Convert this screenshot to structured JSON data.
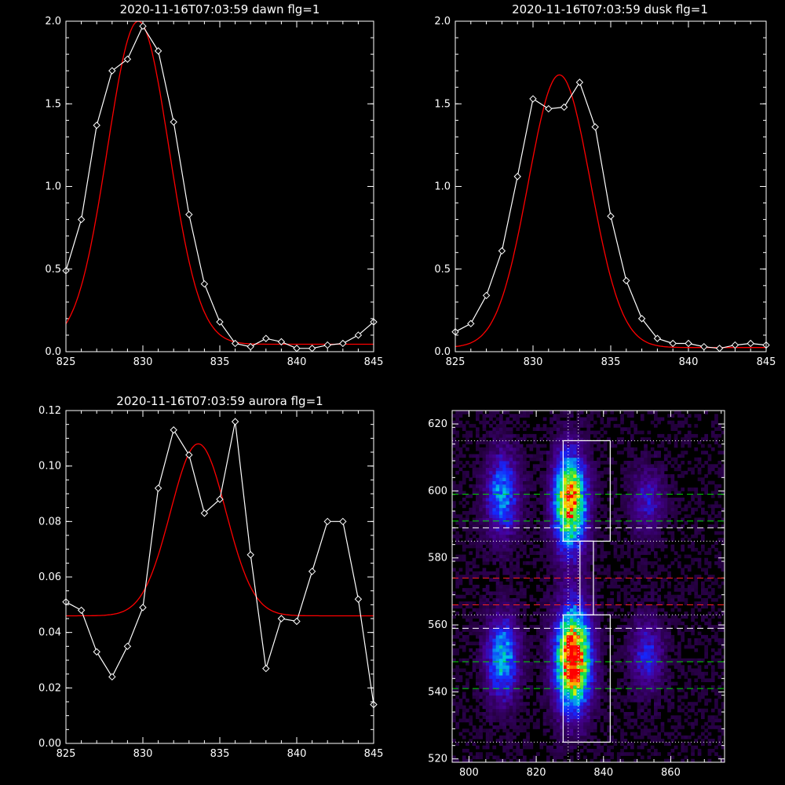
{
  "chart_data": [
    {
      "type": "line",
      "title": "2020-11-16T07:03:59 dawn flg=1",
      "xlim": [
        825,
        845
      ],
      "ylim": [
        0,
        2.0
      ],
      "x_ticks": [
        "825",
        "830",
        "835",
        "840",
        "845"
      ],
      "y_ticks": [
        "0.0",
        "0.5",
        "1.0",
        "1.5",
        "2.0"
      ],
      "series": [
        {
          "color": "#ffffff",
          "marker": "diamond",
          "x": [
            825,
            826,
            827,
            828,
            829,
            830,
            831,
            832,
            833,
            834,
            835,
            836,
            837,
            838,
            839,
            840,
            841,
            842,
            843,
            844,
            845
          ],
          "y": [
            0.49,
            0.8,
            1.37,
            1.7,
            1.77,
            1.97,
            1.82,
            1.39,
            0.83,
            0.41,
            0.18,
            0.05,
            0.03,
            0.08,
            0.06,
            0.02,
            0.02,
            0.04,
            0.05,
            0.1,
            0.18
          ]
        },
        {
          "color": "#ff0000",
          "fit": "gaussian",
          "peak": 1.955,
          "center": 829.7,
          "sigma": 2.0,
          "baseline": 0.045
        }
      ]
    },
    {
      "type": "line",
      "title": "2020-11-16T07:03:59 dusk flg=1",
      "xlim": [
        825,
        845
      ],
      "ylim": [
        0,
        2.0
      ],
      "x_ticks": [
        "825",
        "830",
        "835",
        "840",
        "845"
      ],
      "y_ticks": [
        "0.0",
        "0.5",
        "1.0",
        "1.5",
        "2.0"
      ],
      "series": [
        {
          "color": "#ffffff",
          "marker": "diamond",
          "x": [
            825,
            826,
            827,
            828,
            829,
            830,
            831,
            832,
            833,
            834,
            835,
            836,
            837,
            838,
            839,
            840,
            841,
            842,
            843,
            844,
            845
          ],
          "y": [
            0.12,
            0.17,
            0.34,
            0.61,
            1.06,
            1.53,
            1.47,
            1.48,
            1.63,
            1.36,
            0.82,
            0.43,
            0.2,
            0.08,
            0.05,
            0.05,
            0.03,
            0.02,
            0.04,
            0.05,
            0.04
          ]
        },
        {
          "color": "#ff0000",
          "fit": "gaussian",
          "peak": 1.65,
          "center": 831.7,
          "sigma": 2.0,
          "baseline": 0.025
        }
      ]
    },
    {
      "type": "line",
      "title": "2020-11-16T07:03:59 aurora flg=1",
      "xlim": [
        825,
        845
      ],
      "ylim": [
        0,
        0.12
      ],
      "x_ticks": [
        "825",
        "830",
        "835",
        "840",
        "845"
      ],
      "y_ticks": [
        "0.00",
        "0.02",
        "0.04",
        "0.06",
        "0.08",
        "0.10",
        "0.12"
      ],
      "series": [
        {
          "color": "#ffffff",
          "marker": "diamond",
          "x": [
            825,
            826,
            827,
            828,
            829,
            830,
            831,
            832,
            833,
            834,
            835,
            836,
            837,
            838,
            839,
            840,
            841,
            842,
            843,
            844,
            845
          ],
          "y": [
            0.051,
            0.048,
            0.033,
            0.024,
            0.035,
            0.049,
            0.092,
            0.113,
            0.104,
            0.083,
            0.088,
            0.116,
            0.068,
            0.027,
            0.045,
            0.044,
            0.062,
            0.08,
            0.08,
            0.052,
            0.014
          ]
        },
        {
          "color": "#ff0000",
          "fit": "gaussian",
          "peak": 0.062,
          "center": 833.6,
          "sigma": 1.8,
          "baseline": 0.046
        }
      ]
    },
    {
      "type": "heatmap",
      "xlim": [
        795,
        876
      ],
      "ylim": [
        519,
        624
      ],
      "x_ticks": [
        "800",
        "820",
        "840",
        "860"
      ],
      "y_ticks": [
        "520",
        "540",
        "560",
        "580",
        "600",
        "620"
      ],
      "blobs": [
        {
          "x": 810,
          "y": 599,
          "sx": 3.5,
          "sy": 9,
          "amp": 0.45
        },
        {
          "x": 830,
          "y": 597,
          "sx": 3.5,
          "sy": 10,
          "amp": 0.9
        },
        {
          "x": 853,
          "y": 597,
          "sx": 3.5,
          "sy": 7,
          "amp": 0.25
        },
        {
          "x": 810,
          "y": 550,
          "sx": 3.5,
          "sy": 9,
          "amp": 0.5
        },
        {
          "x": 831,
          "y": 550,
          "sx": 3.8,
          "sy": 11,
          "amp": 1.0
        },
        {
          "x": 853,
          "y": 551,
          "sx": 3.5,
          "sy": 8,
          "amp": 0.3
        }
      ],
      "hlines": [
        {
          "y": 615,
          "color": "#ffffff",
          "style": "dotted"
        },
        {
          "y": 599,
          "color": "#00dd00",
          "style": "dashed"
        },
        {
          "y": 591,
          "color": "#00dd00",
          "style": "dashed"
        },
        {
          "y": 589,
          "color": "#ffffff",
          "style": "dashed"
        },
        {
          "y": 585,
          "color": "#ffffff",
          "style": "dotted"
        },
        {
          "y": 574,
          "color": "#ff2020",
          "style": "dashed"
        },
        {
          "y": 566,
          "color": "#ff2020",
          "style": "dashed"
        },
        {
          "y": 563,
          "color": "#ffffff",
          "style": "dotted"
        },
        {
          "y": 559,
          "color": "#ffffff",
          "style": "dashed"
        },
        {
          "y": 549,
          "color": "#00dd00",
          "style": "dashed"
        },
        {
          "y": 541,
          "color": "#00dd00",
          "style": "dashed"
        },
        {
          "y": 525,
          "color": "#ffffff",
          "style": "dotted"
        }
      ],
      "vlines": [
        {
          "x": 829.5,
          "color": "#ffffff",
          "style": "dotted"
        },
        {
          "x": 832.5,
          "color": "#ffffff",
          "style": "dotted"
        }
      ],
      "boxes": [
        {
          "x0": 828,
          "x1": 842,
          "y0": 585,
          "y1": 615
        },
        {
          "x0": 833,
          "x1": 837,
          "y0": 563,
          "y1": 585
        },
        {
          "x0": 828,
          "x1": 842,
          "y0": 525,
          "y1": 563
        }
      ]
    }
  ]
}
